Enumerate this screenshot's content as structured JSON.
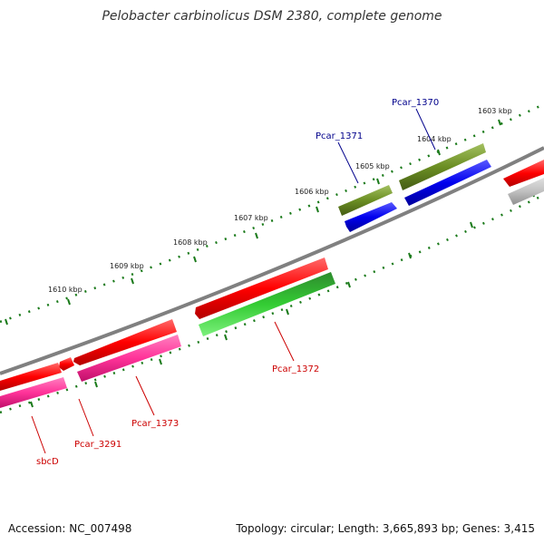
{
  "title": "Pelobacter carbinolicus DSM 2380, complete genome",
  "footer": {
    "accession": "Accession: NC_007498",
    "summary": "Topology: circular; Length: 3,665,893 bp; Genes: 3,415"
  },
  "kbp_ticks": [
    "1603 kbp",
    "1604 kbp",
    "1605 kbp",
    "1606 kbp",
    "1607 kbp",
    "1608 kbp",
    "1609 kbp",
    "1610 kbp"
  ],
  "gene_labels": [
    {
      "text": "Pcar_1370",
      "color": "#00008b"
    },
    {
      "text": "Pcar_1371",
      "color": "#00008b"
    },
    {
      "text": "Pcar_1372",
      "color": "#cc0000"
    },
    {
      "text": "Pcar_1373",
      "color": "#cc0000"
    },
    {
      "text": "Pcar_3291",
      "color": "#cc0000"
    },
    {
      "text": "sbcD",
      "color": "#cc0000"
    }
  ],
  "colors": {
    "backbone": "#808080",
    "forward_cds": "#ff0000",
    "reverse_cds": "#0000ee",
    "olive": "#6b8e23",
    "green": "#33cc33",
    "pink": "#ff3399",
    "tick_green": "#1a7a1a"
  }
}
